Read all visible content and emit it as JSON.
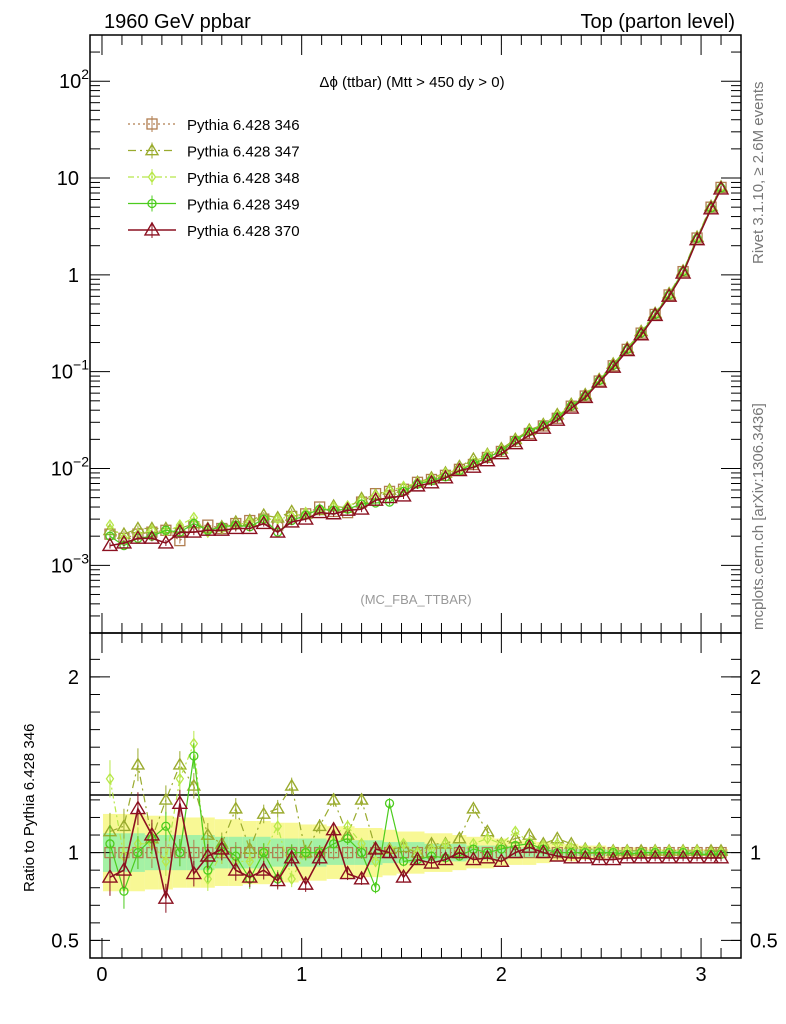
{
  "header": {
    "left": "1960 GeV ppbar",
    "right": "Top (parton level)"
  },
  "side_labels": {
    "rivet": "Rivet 3.1.10, ≥ 2.6M events",
    "mcplots": "mcplots.cern.ch [arXiv:1306.3436]"
  },
  "chart_data": [
    {
      "type": "line",
      "title": "Δϕ (ttbar) (Mtt > 450 dy > 0)",
      "analysis_label": "(MC_FBA_TTBAR)",
      "scale": "log",
      "ylim": [
        0.0002,
        300
      ],
      "xlim": [
        -0.06,
        3.2
      ],
      "y_ticks": [
        {
          "v": 0.001,
          "base": "10",
          "exp": "−3"
        },
        {
          "v": 0.01,
          "base": "10",
          "exp": "−2"
        },
        {
          "v": 0.1,
          "base": "10",
          "exp": "−1"
        },
        {
          "v": 1,
          "base": "1",
          "exp": ""
        },
        {
          "v": 10,
          "base": "10",
          "exp": ""
        },
        {
          "v": 100,
          "base": "10",
          "exp": "2"
        }
      ],
      "x": [
        0.04,
        0.11,
        0.18,
        0.25,
        0.32,
        0.39,
        0.46,
        0.53,
        0.6,
        0.67,
        0.74,
        0.81,
        0.88,
        0.95,
        1.02,
        1.09,
        1.16,
        1.23,
        1.3,
        1.37,
        1.44,
        1.51,
        1.58,
        1.65,
        1.72,
        1.79,
        1.86,
        1.93,
        2.0,
        2.07,
        2.14,
        2.21,
        2.28,
        2.35,
        2.42,
        2.49,
        2.56,
        2.63,
        2.7,
        2.77,
        2.84,
        2.91,
        2.98,
        3.05,
        3.1
      ],
      "series": [
        {
          "name": "Pythia 6.428 346",
          "color": "#b07d4f",
          "marker": "square",
          "dash": "2,3",
          "values": [
            0.0021,
            0.0019,
            0.0021,
            0.0022,
            0.0023,
            0.0018,
            0.0025,
            0.0026,
            0.0024,
            0.0027,
            0.0029,
            0.003,
            0.0026,
            0.0032,
            0.0034,
            0.004,
            0.0036,
            0.0035,
            0.0045,
            0.0055,
            0.0058,
            0.0061,
            0.0072,
            0.0077,
            0.0085,
            0.0098,
            0.011,
            0.013,
            0.015,
            0.019,
            0.023,
            0.0275,
            0.033,
            0.044,
            0.056,
            0.08,
            0.115,
            0.17,
            0.25,
            0.39,
            0.62,
            1.08,
            2.4,
            5.0,
            8.0
          ]
        },
        {
          "name": "Pythia 6.428 347",
          "color": "#9aab2e",
          "marker": "triangle",
          "dash": "8,4,2,4",
          "values": [
            0.0023,
            0.0021,
            0.0024,
            0.0024,
            0.0024,
            0.0024,
            0.0027,
            0.0024,
            0.0025,
            0.0028,
            0.0029,
            0.0033,
            0.0031,
            0.0036,
            0.0034,
            0.0037,
            0.0041,
            0.0039,
            0.0049,
            0.0053,
            0.006,
            0.0063,
            0.0072,
            0.008,
            0.009,
            0.0105,
            0.0125,
            0.014,
            0.016,
            0.02,
            0.025,
            0.0285,
            0.036,
            0.046,
            0.058,
            0.083,
            0.12,
            0.175,
            0.26,
            0.4,
            0.64,
            1.1,
            2.45,
            5.1,
            8.1
          ]
        },
        {
          "name": "Pythia 6.428 348",
          "color": "#b8e84a",
          "marker": "diamond",
          "dash": "6,3,2,3",
          "values": [
            0.0026,
            0.0019,
            0.0021,
            0.0023,
            0.0022,
            0.0026,
            0.0031,
            0.0022,
            0.0024,
            0.0026,
            0.0028,
            0.003,
            0.003,
            0.0032,
            0.0035,
            0.0038,
            0.004,
            0.0041,
            0.0047,
            0.0053,
            0.0059,
            0.0065,
            0.0071,
            0.0078,
            0.0089,
            0.0098,
            0.0115,
            0.014,
            0.0155,
            0.0195,
            0.0245,
            0.028,
            0.035,
            0.045,
            0.057,
            0.082,
            0.118,
            0.172,
            0.255,
            0.395,
            0.63,
            1.09,
            2.42,
            5.0,
            8.0
          ]
        },
        {
          "name": "Pythia 6.428 349",
          "color": "#4ccc1e",
          "marker": "circle",
          "dash": "",
          "values": [
            0.002,
            0.0016,
            0.0019,
            0.002,
            0.0023,
            0.0022,
            0.0027,
            0.0023,
            0.0025,
            0.0026,
            0.0025,
            0.003,
            0.0022,
            0.0029,
            0.0033,
            0.0038,
            0.0037,
            0.0038,
            0.0043,
            0.0044,
            0.0045,
            0.0058,
            0.0069,
            0.0075,
            0.0082,
            0.0095,
            0.0112,
            0.013,
            0.0152,
            0.0195,
            0.024,
            0.028,
            0.034,
            0.044,
            0.056,
            0.081,
            0.116,
            0.17,
            0.25,
            0.39,
            0.62,
            1.08,
            2.38,
            4.9,
            7.9
          ]
        },
        {
          "name": "Pythia 6.428 370",
          "color": "#8b1020",
          "marker": "triangle-open",
          "dash": "",
          "values": [
            0.0016,
            0.0017,
            0.0019,
            0.0019,
            0.0017,
            0.0022,
            0.0022,
            0.0023,
            0.0023,
            0.0024,
            0.0024,
            0.0027,
            0.0022,
            0.0028,
            0.003,
            0.0035,
            0.0034,
            0.0037,
            0.0038,
            0.0047,
            0.005,
            0.0052,
            0.0066,
            0.0071,
            0.008,
            0.0095,
            0.0103,
            0.012,
            0.0142,
            0.018,
            0.022,
            0.026,
            0.0315,
            0.042,
            0.054,
            0.078,
            0.111,
            0.165,
            0.24,
            0.38,
            0.6,
            1.04,
            2.3,
            4.8,
            7.7
          ]
        }
      ]
    },
    {
      "type": "line",
      "ylabel": "Ratio to Pythia 6.428 346",
      "ylim": [
        0.4,
        2.25
      ],
      "y_ticks": [
        {
          "v": 0.5,
          "label": "0.5"
        },
        {
          "v": 1,
          "label": "1"
        },
        {
          "v": 2,
          "label": "2"
        }
      ],
      "x_ticks": [
        {
          "v": 0,
          "label": "0"
        },
        {
          "v": 1,
          "label": "1"
        },
        {
          "v": 2,
          "label": "2"
        },
        {
          "v": 3,
          "label": "3"
        }
      ],
      "band_yellow": [
        0.22,
        0.22,
        0.22,
        0.21,
        0.21,
        0.2,
        0.2,
        0.2,
        0.19,
        0.19,
        0.18,
        0.18,
        0.17,
        0.17,
        0.16,
        0.16,
        0.15,
        0.15,
        0.14,
        0.14,
        0.13,
        0.12,
        0.12,
        0.11,
        0.11,
        0.1,
        0.09,
        0.09,
        0.08,
        0.07,
        0.07,
        0.06,
        0.05,
        0.05,
        0.04,
        0.04,
        0.03,
        0.03,
        0.03,
        0.02,
        0.02,
        0.02,
        0.02,
        0.02,
        0.02
      ],
      "band_green": [
        0.11,
        0.11,
        0.11,
        0.1,
        0.1,
        0.1,
        0.1,
        0.1,
        0.09,
        0.09,
        0.09,
        0.09,
        0.08,
        0.08,
        0.08,
        0.08,
        0.07,
        0.07,
        0.07,
        0.07,
        0.06,
        0.06,
        0.06,
        0.05,
        0.05,
        0.05,
        0.04,
        0.04,
        0.04,
        0.03,
        0.03,
        0.03,
        0.02,
        0.02,
        0.02,
        0.02,
        0.015,
        0.015,
        0.015,
        0.01,
        0.01,
        0.01,
        0.01,
        0.01,
        0.01
      ],
      "series": [
        {
          "name": "Pythia 6.428 346",
          "color": "#b07d4f",
          "marker": "square",
          "dash": "2,3",
          "values": [
            1,
            1,
            1,
            1,
            1,
            1,
            1,
            1,
            1,
            1,
            1,
            1,
            1,
            1,
            1,
            1,
            1,
            1,
            1,
            1,
            1,
            1,
            1,
            1,
            1,
            1,
            1,
            1,
            1,
            1,
            1,
            1,
            1,
            1,
            1,
            1,
            1,
            1,
            1,
            1,
            1,
            1,
            1,
            1,
            1
          ]
        },
        {
          "name": "Pythia 6.428 347",
          "color": "#9aab2e",
          "marker": "triangle",
          "dash": "8,4,2,4",
          "values": [
            1.12,
            1.15,
            1.5,
            1.08,
            1.3,
            1.5,
            1.38,
            1.1,
            1.05,
            1.25,
            1.02,
            1.22,
            1.25,
            1.38,
            1.0,
            1.15,
            1.3,
            1.1,
            1.3,
            1.02,
            1.02,
            1.03,
            1.0,
            1.05,
            1.05,
            1.08,
            1.25,
            1.12,
            1.05,
            1.08,
            1.1,
            1.05,
            1.08,
            1.05,
            1.02,
            1.02,
            1.01,
            1.01,
            1.01,
            1.01,
            1.01,
            1.01,
            1.01,
            1.01,
            1.01
          ]
        },
        {
          "name": "Pythia 6.428 348",
          "color": "#b8e84a",
          "marker": "diamond",
          "dash": "6,3,2,3",
          "values": [
            1.42,
            0.98,
            1.05,
            1.05,
            0.95,
            1.42,
            1.62,
            0.85,
            1.0,
            0.95,
            0.95,
            1.0,
            1.15,
            0.85,
            1.0,
            1.0,
            1.1,
            1.15,
            1.05,
            0.95,
            1.02,
            1.05,
            1.0,
            1.02,
            1.05,
            1.0,
            1.05,
            1.08,
            1.05,
            1.12,
            1.06,
            1.04,
            1.05,
            1.03,
            1.02,
            1.02,
            1.01,
            1.01,
            1.0,
            1.01,
            1.01,
            1.01,
            1.01,
            1.0,
            1.0
          ]
        },
        {
          "name": "Pythia 6.428 349",
          "color": "#4ccc1e",
          "marker": "circle",
          "dash": "",
          "values": [
            1.05,
            0.78,
            1.0,
            1.08,
            1.15,
            1.0,
            1.55,
            0.9,
            1.03,
            0.98,
            0.85,
            1.0,
            0.85,
            1.0,
            1.0,
            1.0,
            1.05,
            1.08,
            1.0,
            0.8,
            1.28,
            0.95,
            0.96,
            0.98,
            0.97,
            0.98,
            1.02,
            1.0,
            1.02,
            1.04,
            1.05,
            1.02,
            1.0,
            1.0,
            1.0,
            1.0,
            1.0,
            0.99,
            1.0,
            1.0,
            1.0,
            1.0,
            0.99,
            0.99,
            0.99
          ]
        },
        {
          "name": "Pythia 6.428 370",
          "color": "#8b1020",
          "marker": "triangle-open",
          "dash": "",
          "values": [
            0.86,
            0.9,
            1.25,
            1.1,
            0.74,
            1.28,
            0.88,
            0.98,
            1.02,
            0.9,
            0.86,
            0.9,
            0.84,
            0.97,
            0.82,
            0.97,
            1.13,
            0.88,
            0.85,
            1.02,
            1.0,
            0.86,
            0.96,
            0.94,
            0.96,
            1.0,
            0.96,
            0.97,
            0.95,
            1.0,
            1.03,
            1.0,
            0.98,
            0.97,
            0.97,
            0.96,
            0.96,
            0.97,
            0.97,
            0.97,
            0.97,
            0.97,
            0.97,
            0.97,
            0.97
          ]
        }
      ]
    }
  ]
}
